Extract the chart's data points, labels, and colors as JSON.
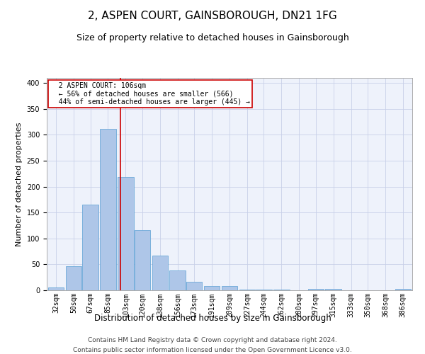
{
  "title": "2, ASPEN COURT, GAINSBOROUGH, DN21 1FG",
  "subtitle": "Size of property relative to detached houses in Gainsborough",
  "xlabel": "Distribution of detached houses by size in Gainsborough",
  "ylabel": "Number of detached properties",
  "footer1": "Contains HM Land Registry data © Crown copyright and database right 2024.",
  "footer2": "Contains public sector information licensed under the Open Government Licence v3.0.",
  "annotation_title": "2 ASPEN COURT: 106sqm",
  "annotation_line1": "← 56% of detached houses are smaller (566)",
  "annotation_line2": "44% of semi-detached houses are larger (445) →",
  "property_size": 106,
  "categories": [
    "32sqm",
    "50sqm",
    "67sqm",
    "85sqm",
    "103sqm",
    "120sqm",
    "138sqm",
    "156sqm",
    "173sqm",
    "191sqm",
    "209sqm",
    "227sqm",
    "244sqm",
    "262sqm",
    "280sqm",
    "297sqm",
    "315sqm",
    "333sqm",
    "350sqm",
    "368sqm",
    "386sqm"
  ],
  "bin_edges": [
    32,
    50,
    67,
    85,
    103,
    120,
    138,
    156,
    173,
    191,
    209,
    227,
    244,
    262,
    280,
    297,
    315,
    333,
    350,
    368,
    386
  ],
  "values": [
    5,
    46,
    165,
    312,
    218,
    116,
    67,
    38,
    16,
    8,
    8,
    2,
    2,
    2,
    0,
    3,
    3,
    0,
    0,
    0,
    3
  ],
  "bar_color": "#aec6e8",
  "bar_edge_color": "#5a9fd4",
  "vline_color": "#cc0000",
  "annotation_box_color": "#cc0000",
  "background_color": "#eef2fb",
  "ylim": [
    0,
    410
  ],
  "yticks": [
    0,
    50,
    100,
    150,
    200,
    250,
    300,
    350,
    400
  ],
  "grid_color": "#c8d0e8",
  "title_fontsize": 11,
  "subtitle_fontsize": 9,
  "axis_label_fontsize": 8,
  "tick_fontsize": 7,
  "annotation_fontsize": 7,
  "footer_fontsize": 6.5
}
